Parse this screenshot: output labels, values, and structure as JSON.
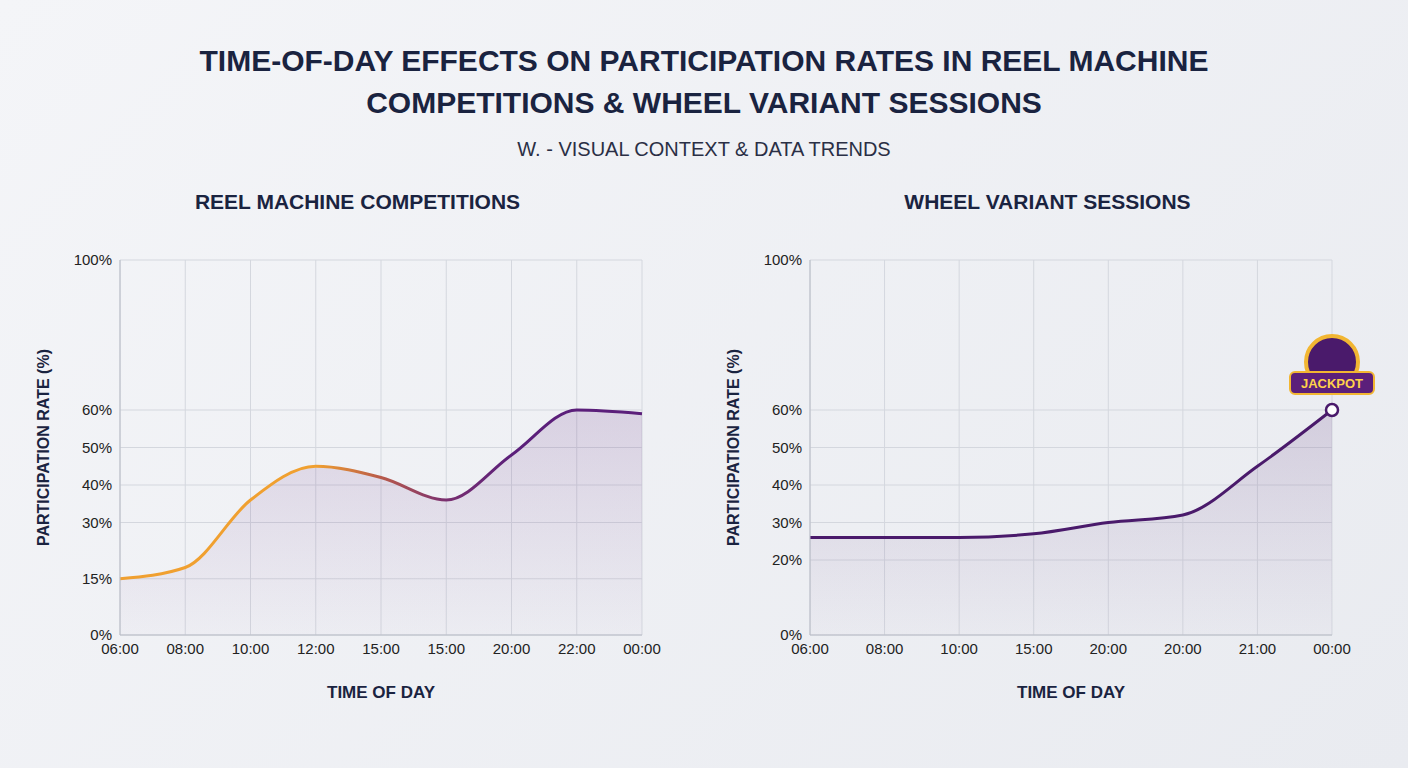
{
  "title": "TIME-OF-DAY EFFECTS ON PARTICIPATION RATES IN REEL MACHINE COMPETITIONS & WHEEL VARIANT SESSIONS",
  "subtitle": "W. - VISUAL CONTEXT & DATA TRENDS",
  "chart_data": [
    {
      "type": "area",
      "title": "REEL MACHINE COMPETITIONS",
      "x_label": "TIME OF DAY",
      "y_label": "PARTICIPATION RATE (%)",
      "categories": [
        "06:00",
        "08:00",
        "10:00",
        "12:00",
        "15:00",
        "15:00",
        "20:00",
        "22:00",
        "00:00"
      ],
      "series": [
        {
          "values": [
            15,
            18,
            36,
            45,
            42,
            36,
            48,
            60,
            59
          ],
          "colors": [
            "#f0a030",
            "#f0a030",
            "#f0a030",
            "#f0a030",
            "#b85a4a",
            "#7a3070",
            "#5b1f7a",
            "#5b1f7a",
            "#5b1f7a"
          ]
        }
      ],
      "ylim": [
        0,
        100
      ],
      "yticks": [
        {
          "value": 0,
          "label": "0%"
        },
        {
          "value": 15,
          "label": "15%"
        },
        {
          "value": 30,
          "label": "30%"
        },
        {
          "value": 40,
          "label": "40%"
        },
        {
          "value": 50,
          "label": "50%"
        },
        {
          "value": 60,
          "label": "60%"
        },
        {
          "value": 100,
          "label": "100%"
        }
      ],
      "grid": true
    },
    {
      "type": "area",
      "title": "WHEEL VARIANT SESSIONS",
      "x_label": "TIME OF DAY",
      "y_label": "PARTICIPATION RATE (%)",
      "categories": [
        "06:00",
        "08:00",
        "10:00",
        "15:00",
        "20:00",
        "20:00",
        "21:00",
        "00:00"
      ],
      "series": [
        {
          "values": [
            26,
            26,
            26,
            27,
            30,
            32,
            45,
            60
          ],
          "color": "#4a1a6b"
        }
      ],
      "ylim": [
        0,
        100
      ],
      "yticks": [
        {
          "value": 0,
          "label": "0%"
        },
        {
          "value": 20,
          "label": "20%"
        },
        {
          "value": 30,
          "label": "30%"
        },
        {
          "value": 40,
          "label": "40%"
        },
        {
          "value": 50,
          "label": "50%"
        },
        {
          "value": 60,
          "label": "60%"
        },
        {
          "value": 100,
          "label": "100%"
        }
      ],
      "grid": true,
      "annotations": [
        "JACKPOT"
      ]
    }
  ]
}
